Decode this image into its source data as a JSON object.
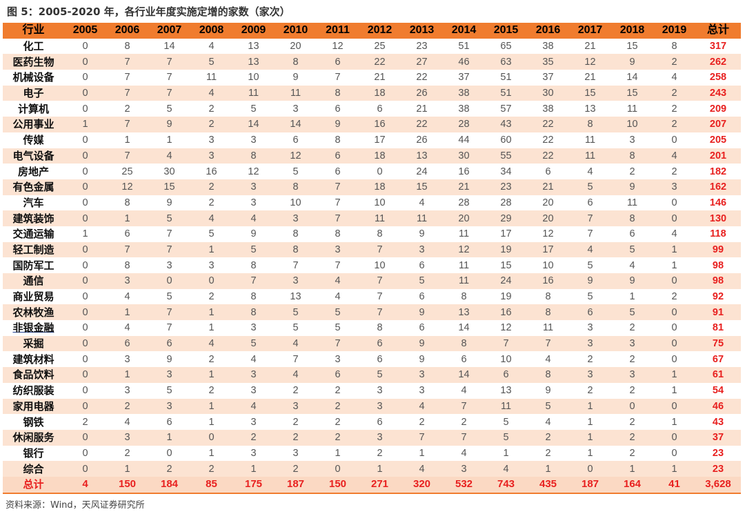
{
  "title": "图 5：2005-2020 年，各行业年度实施定增的家数（家次）",
  "source": "资料来源：Wind，天风证券研究所",
  "chart_data": {
    "type": "table",
    "title": "图 5：2005-2020 年，各行业年度实施定增的家数（家次）",
    "columns": [
      "行业",
      "2005",
      "2006",
      "2007",
      "2008",
      "2009",
      "2010",
      "2011",
      "2012",
      "2013",
      "2014",
      "2015",
      "2016",
      "2017",
      "2018",
      "2019",
      "总计"
    ],
    "rows": [
      {
        "industry": "化工",
        "values": [
          "0",
          "8",
          "14",
          "4",
          "13",
          "20",
          "12",
          "25",
          "23",
          "51",
          "65",
          "38",
          "21",
          "15",
          "8"
        ],
        "total": "317"
      },
      {
        "industry": "医药生物",
        "values": [
          "0",
          "7",
          "7",
          "5",
          "13",
          "8",
          "6",
          "22",
          "27",
          "46",
          "63",
          "35",
          "12",
          "9",
          "2"
        ],
        "total": "262"
      },
      {
        "industry": "机械设备",
        "values": [
          "0",
          "7",
          "7",
          "11",
          "10",
          "9",
          "7",
          "21",
          "22",
          "37",
          "51",
          "37",
          "21",
          "14",
          "4"
        ],
        "total": "258"
      },
      {
        "industry": "电子",
        "values": [
          "0",
          "7",
          "7",
          "4",
          "11",
          "11",
          "8",
          "18",
          "26",
          "38",
          "51",
          "30",
          "15",
          "15",
          "2"
        ],
        "total": "243"
      },
      {
        "industry": "计算机",
        "values": [
          "0",
          "2",
          "5",
          "2",
          "5",
          "3",
          "6",
          "6",
          "21",
          "38",
          "57",
          "38",
          "13",
          "11",
          "2"
        ],
        "total": "209"
      },
      {
        "industry": "公用事业",
        "values": [
          "1",
          "7",
          "9",
          "2",
          "14",
          "14",
          "9",
          "16",
          "22",
          "28",
          "43",
          "22",
          "8",
          "10",
          "2"
        ],
        "total": "207"
      },
      {
        "industry": "传媒",
        "values": [
          "0",
          "1",
          "1",
          "3",
          "3",
          "6",
          "8",
          "17",
          "26",
          "44",
          "60",
          "22",
          "11",
          "3",
          "0"
        ],
        "total": "205"
      },
      {
        "industry": "电气设备",
        "values": [
          "0",
          "7",
          "4",
          "3",
          "8",
          "12",
          "6",
          "18",
          "13",
          "30",
          "55",
          "22",
          "11",
          "8",
          "4"
        ],
        "total": "201"
      },
      {
        "industry": "房地产",
        "values": [
          "0",
          "25",
          "30",
          "16",
          "12",
          "5",
          "6",
          "0",
          "24",
          "16",
          "34",
          "6",
          "4",
          "2",
          "2"
        ],
        "total": "182"
      },
      {
        "industry": "有色金属",
        "values": [
          "0",
          "12",
          "15",
          "2",
          "3",
          "8",
          "7",
          "18",
          "15",
          "21",
          "23",
          "21",
          "5",
          "9",
          "3"
        ],
        "total": "162"
      },
      {
        "industry": "汽车",
        "values": [
          "0",
          "8",
          "9",
          "2",
          "3",
          "10",
          "7",
          "10",
          "4",
          "28",
          "28",
          "20",
          "6",
          "11",
          "0"
        ],
        "total": "146"
      },
      {
        "industry": "建筑装饰",
        "values": [
          "0",
          "1",
          "5",
          "4",
          "4",
          "3",
          "7",
          "11",
          "11",
          "20",
          "29",
          "20",
          "7",
          "8",
          "0"
        ],
        "total": "130"
      },
      {
        "industry": "交通运输",
        "values": [
          "1",
          "6",
          "7",
          "5",
          "9",
          "8",
          "8",
          "8",
          "9",
          "11",
          "17",
          "12",
          "7",
          "6",
          "4"
        ],
        "total": "118"
      },
      {
        "industry": "轻工制造",
        "values": [
          "0",
          "7",
          "7",
          "1",
          "5",
          "8",
          "3",
          "7",
          "3",
          "12",
          "19",
          "17",
          "4",
          "5",
          "1"
        ],
        "total": "99"
      },
      {
        "industry": "国防军工",
        "values": [
          "0",
          "8",
          "3",
          "3",
          "8",
          "7",
          "7",
          "10",
          "6",
          "11",
          "15",
          "10",
          "5",
          "4",
          "1"
        ],
        "total": "98"
      },
      {
        "industry": "通信",
        "values": [
          "0",
          "3",
          "0",
          "0",
          "7",
          "3",
          "4",
          "7",
          "5",
          "11",
          "24",
          "16",
          "9",
          "9",
          "0"
        ],
        "total": "98"
      },
      {
        "industry": "商业贸易",
        "values": [
          "0",
          "4",
          "5",
          "2",
          "8",
          "13",
          "4",
          "7",
          "6",
          "8",
          "19",
          "8",
          "5",
          "1",
          "2"
        ],
        "total": "92"
      },
      {
        "industry": "农林牧渔",
        "values": [
          "0",
          "1",
          "7",
          "1",
          "8",
          "5",
          "5",
          "7",
          "9",
          "13",
          "16",
          "8",
          "6",
          "5",
          "0"
        ],
        "total": "91"
      },
      {
        "industry": "非银金融",
        "values": [
          "0",
          "4",
          "7",
          "1",
          "3",
          "5",
          "5",
          "8",
          "6",
          "14",
          "12",
          "11",
          "3",
          "2",
          "0"
        ],
        "total": "81"
      },
      {
        "industry": "采掘",
        "values": [
          "0",
          "6",
          "6",
          "4",
          "5",
          "4",
          "7",
          "6",
          "9",
          "8",
          "7",
          "7",
          "3",
          "3",
          "0"
        ],
        "total": "75"
      },
      {
        "industry": "建筑材料",
        "values": [
          "0",
          "3",
          "9",
          "2",
          "4",
          "7",
          "3",
          "6",
          "9",
          "6",
          "10",
          "4",
          "2",
          "2",
          "0"
        ],
        "total": "67"
      },
      {
        "industry": "食品饮料",
        "values": [
          "0",
          "1",
          "3",
          "1",
          "3",
          "4",
          "6",
          "5",
          "3",
          "14",
          "6",
          "8",
          "3",
          "3",
          "1"
        ],
        "total": "61"
      },
      {
        "industry": "纺织服装",
        "values": [
          "0",
          "3",
          "5",
          "2",
          "3",
          "2",
          "2",
          "3",
          "3",
          "4",
          "13",
          "9",
          "2",
          "2",
          "1"
        ],
        "total": "54"
      },
      {
        "industry": "家用电器",
        "values": [
          "0",
          "2",
          "3",
          "1",
          "4",
          "3",
          "2",
          "3",
          "4",
          "7",
          "11",
          "5",
          "1",
          "0",
          "0"
        ],
        "total": "46"
      },
      {
        "industry": "钢铁",
        "values": [
          "2",
          "4",
          "6",
          "1",
          "3",
          "2",
          "2",
          "6",
          "2",
          "2",
          "5",
          "4",
          "1",
          "2",
          "1"
        ],
        "total": "43"
      },
      {
        "industry": "休闲服务",
        "values": [
          "0",
          "3",
          "1",
          "0",
          "2",
          "2",
          "2",
          "3",
          "7",
          "7",
          "5",
          "2",
          "1",
          "2",
          "0"
        ],
        "total": "37"
      },
      {
        "industry": "银行",
        "values": [
          "0",
          "2",
          "0",
          "1",
          "3",
          "3",
          "1",
          "2",
          "1",
          "4",
          "1",
          "2",
          "1",
          "2",
          "0"
        ],
        "total": "23"
      },
      {
        "industry": "综合",
        "values": [
          "0",
          "1",
          "2",
          "2",
          "1",
          "2",
          "0",
          "1",
          "4",
          "3",
          "4",
          "1",
          "0",
          "1",
          "1"
        ],
        "total": "23"
      }
    ],
    "totals_row": {
      "industry": "总计",
      "values": [
        "4",
        "150",
        "184",
        "85",
        "175",
        "187",
        "150",
        "271",
        "320",
        "532",
        "743",
        "435",
        "187",
        "164",
        "41"
      ],
      "total": "3,628"
    },
    "colors": {
      "header_bg": "#f07c2e",
      "stripe_bg": "#fce3d2",
      "total_text": "#e8201f"
    }
  }
}
